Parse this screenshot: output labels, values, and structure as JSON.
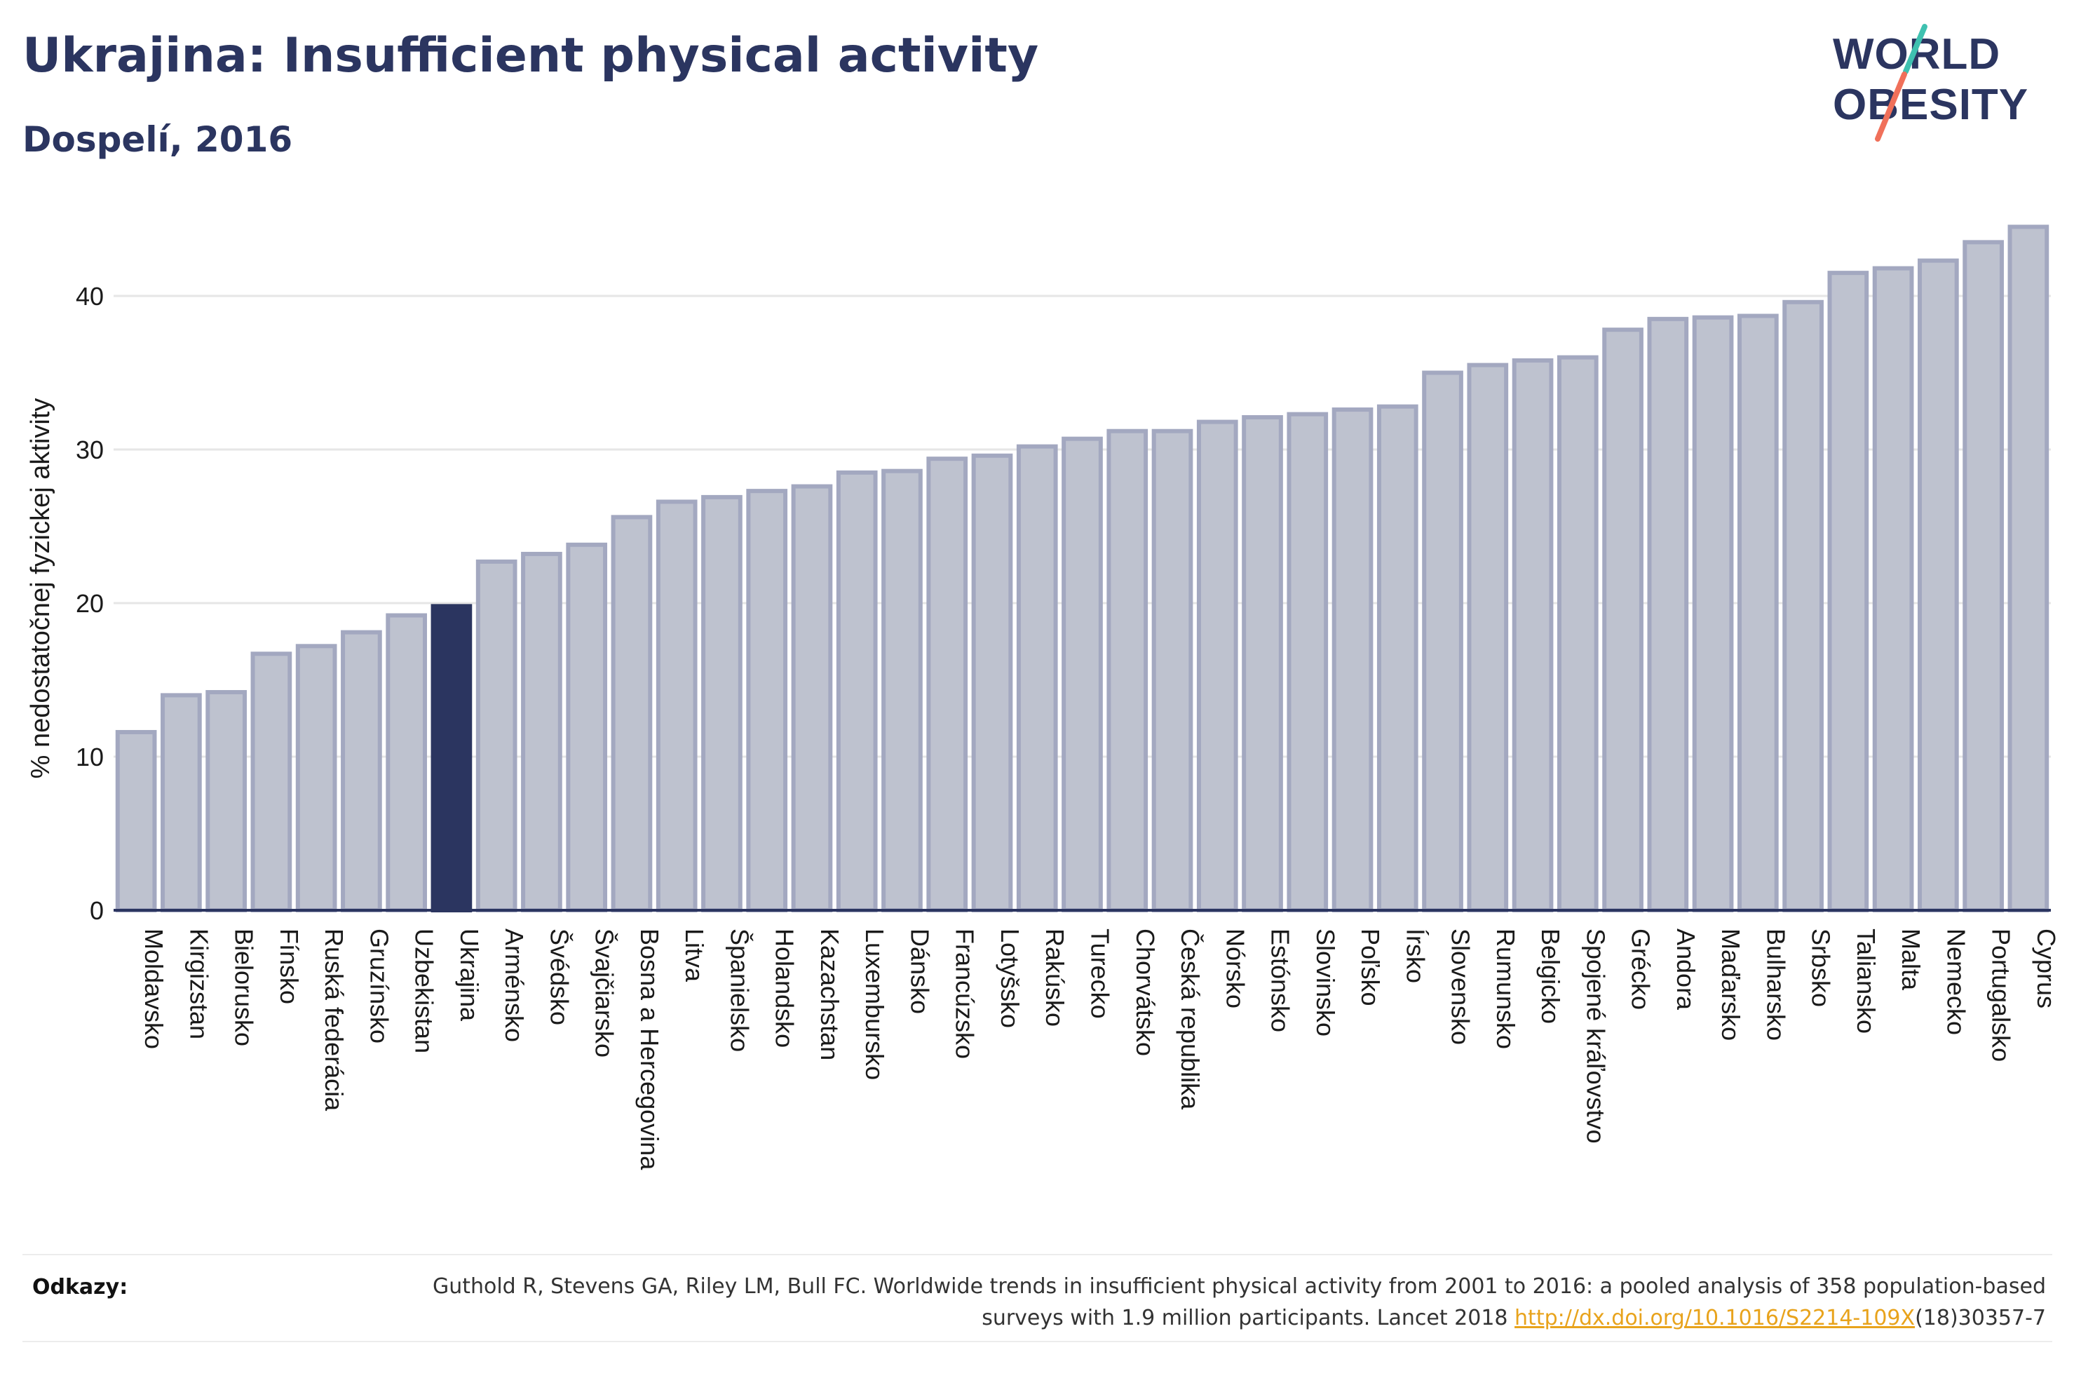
{
  "header": {
    "title": "Ukrajina: Insufficient physical activity",
    "subtitle": "Dospelí, 2016"
  },
  "logo": {
    "line1": "WORLD",
    "line2": "OBESITY",
    "text_color": "#2b3560",
    "slash_colors": [
      "#3fc1b0",
      "#f0705a"
    ]
  },
  "chart_data": {
    "type": "bar",
    "title": "",
    "xlabel": "",
    "ylabel": "% nedostatočnej fyzickej aktivity",
    "ylim": [
      0,
      45
    ],
    "yticks": [
      0,
      10,
      20,
      30,
      40
    ],
    "grid": true,
    "highlight": "Ukrajina",
    "colors": {
      "bar_fill": "#bec2cf",
      "bar_stroke": "#a3a8c0",
      "highlight": "#2b3560",
      "gridline": "#e6e6e6",
      "axis": "#2b3560"
    },
    "categories": [
      "Moldavsko",
      "Kirgizstan",
      "Bielorusko",
      "Fínsko",
      "Ruská federácia",
      "Gruzínsko",
      "Uzbekistan",
      "Ukrajina",
      "Arménsko",
      "Švédsko",
      "Švajčiarsko",
      "Bosna a Hercegovina",
      "Litva",
      "Španielsko",
      "Holandsko",
      "Kazachstan",
      "Luxembursko",
      "Dánsko",
      "Francúzsko",
      "Lotyšsko",
      "Rakúsko",
      "Turecko",
      "Chorvátsko",
      "Česká republika",
      "Nórsko",
      "Estónsko",
      "Slovinsko",
      "Poľsko",
      "Írsko",
      "Slovensko",
      "Rumunsko",
      "Belgicko",
      "Spojené kráľovstvo",
      "Grécko",
      "Andora",
      "Maďarsko",
      "Bulharsko",
      "Srbsko",
      "Taliansko",
      "Malta",
      "Nemecko",
      "Portugalsko",
      "Cyprus"
    ],
    "values": [
      11.6,
      14.0,
      14.2,
      16.7,
      17.2,
      18.1,
      19.2,
      19.8,
      22.7,
      23.2,
      23.8,
      25.6,
      26.6,
      26.9,
      27.3,
      27.6,
      28.5,
      28.6,
      29.4,
      29.6,
      30.2,
      30.7,
      31.2,
      31.2,
      31.8,
      32.1,
      32.3,
      32.6,
      32.8,
      35.0,
      35.5,
      35.8,
      36.0,
      37.8,
      38.5,
      38.6,
      38.7,
      39.6,
      41.5,
      41.8,
      42.3,
      43.5,
      44.5
    ]
  },
  "references": {
    "label": "Odkazy:",
    "text": "Guthold R, Stevens GA, Riley LM, Bull FC. Worldwide trends in insufficient physical activity from 2001 to 2016: a pooled analysis of 358 population-based surveys with 1.9 million participants. Lancet 2018 ",
    "link": "http://dx.doi.org/10.1016/S2214-109X",
    "suffix": "(18)30357-7"
  }
}
